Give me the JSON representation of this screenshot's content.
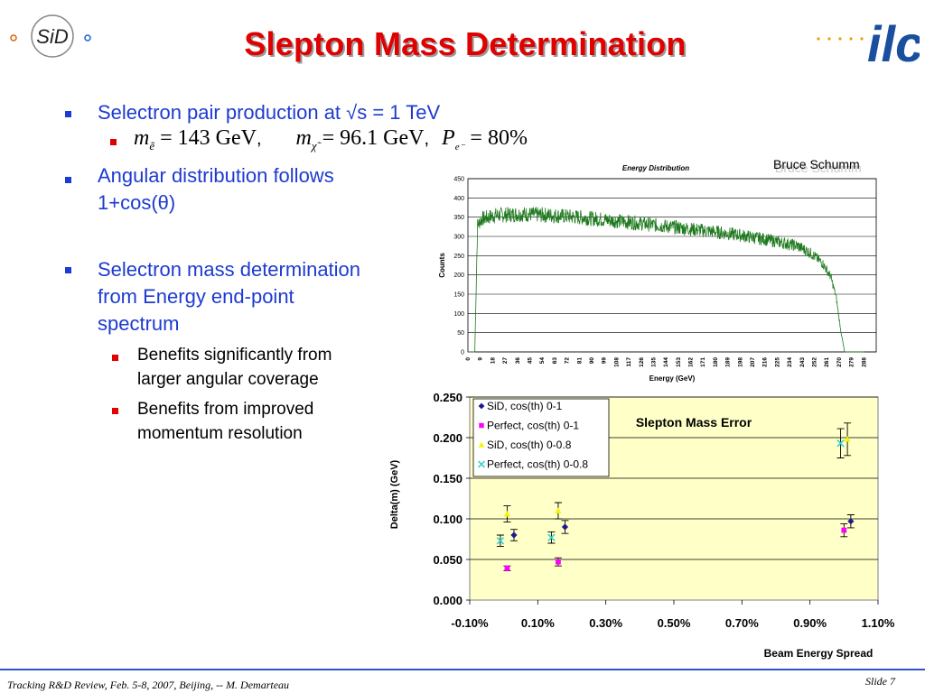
{
  "slide": {
    "title": "Slepton Mass Determination",
    "footer_left": "Tracking R&D Review, Feb. 5-8, 2007, Beijing, -- M. Demarteau",
    "footer_right": "Slide 7",
    "author_credit": "Bruce Schumm",
    "logo_left": "SiD",
    "logo_right": "ilc"
  },
  "bullets": {
    "b1": "Selectron pair production at √s = 1 TeV",
    "b1_math": {
      "me_sym": "m",
      "me_sub": "ẽ",
      "me_val": " = 143 GeV",
      "mchi_sym": "m",
      "mchi_sub": "χ̃",
      "mchi_val": " = 96.1 GeV",
      "pe_sym": "P",
      "pe_sub": "e⁻",
      "pe_val": " = 80%",
      "sep": ","
    },
    "b2_line1": "Angular distribution follows",
    "b2_line2": "1+cos(θ)",
    "b3_line1": "Selectron mass determination",
    "b3_line2": "from Energy end-point",
    "b3_line3": "spectrum",
    "b3_sub1_line1": "Benefits significantly from",
    "b3_sub1_line2": "larger angular coverage",
    "b3_sub2_line1": "Benefits from improved",
    "b3_sub2_line2": "momentum resolution"
  },
  "chart_data": [
    {
      "type": "line",
      "title": "Energy Distribution",
      "xlabel": "Energy (GeV)",
      "ylabel": "Counts",
      "ylim": [
        0,
        450
      ],
      "yticks": [
        "0",
        "50",
        "100",
        "150",
        "200",
        "250",
        "300",
        "350",
        "400",
        "450"
      ],
      "xticks": [
        "0",
        "9",
        "18",
        "27",
        "36",
        "45",
        "54",
        "63",
        "72",
        "81",
        "90",
        "99",
        "108",
        "117",
        "126",
        "135",
        "144",
        "153",
        "162",
        "171",
        "180",
        "189",
        "198",
        "207",
        "216",
        "225",
        "234",
        "243",
        "252",
        "261",
        "270",
        "279",
        "288"
      ],
      "grid": true,
      "color": "#1f7a1f",
      "shape": {
        "x": [
          0,
          5,
          7,
          10,
          20,
          40,
          60,
          80,
          100,
          120,
          140,
          160,
          180,
          200,
          220,
          240,
          250,
          258,
          264,
          268,
          271,
          274,
          288
        ],
        "y": [
          0,
          0,
          330,
          345,
          355,
          358,
          355,
          350,
          343,
          336,
          328,
          320,
          312,
          302,
          290,
          275,
          255,
          230,
          195,
          140,
          60,
          0,
          0
        ]
      },
      "noise_amplitude": 20
    },
    {
      "type": "scatter",
      "title": "Slepton Mass Error",
      "xlabel": "Beam Energy Spread",
      "ylabel": "Delta(m) (GeV)",
      "xlim": [
        -0.1,
        1.1
      ],
      "ylim": [
        0.0,
        0.25
      ],
      "xticks": [
        "-0.10%",
        "0.10%",
        "0.30%",
        "0.50%",
        "0.70%",
        "0.90%",
        "1.10%"
      ],
      "yticks": [
        "0.000",
        "0.050",
        "0.100",
        "0.150",
        "0.200",
        "0.250"
      ],
      "background": "#ffffc8",
      "legend_position": "top-left",
      "series": [
        {
          "name": "SiD, cos(th) 0-1",
          "color": "#1a1a8c",
          "marker": "diamond",
          "x": [
            0.03,
            0.18,
            1.02
          ],
          "y": [
            0.08,
            0.09,
            0.097
          ],
          "err": [
            0.007,
            0.008,
            0.008
          ]
        },
        {
          "name": "Perfect, cos(th) 0-1",
          "color": "#ff00ff",
          "marker": "square",
          "x": [
            0.01,
            0.16,
            1.0
          ],
          "y": [
            0.039,
            0.047,
            0.086
          ],
          "err": [
            0.003,
            0.005,
            0.008
          ]
        },
        {
          "name": "SiD, cos(th) 0-0.8",
          "color": "#f5f500",
          "marker": "triangle",
          "x": [
            0.01,
            0.16,
            1.01
          ],
          "y": [
            0.106,
            0.11,
            0.198
          ],
          "err": [
            0.01,
            0.01,
            0.02
          ]
        },
        {
          "name": "Perfect, cos(th) 0-0.8",
          "color": "#33d0d0",
          "marker": "x",
          "x": [
            -0.01,
            0.14,
            0.99
          ],
          "y": [
            0.073,
            0.077,
            0.193
          ],
          "err": [
            0.007,
            0.007,
            0.018
          ]
        }
      ]
    }
  ]
}
